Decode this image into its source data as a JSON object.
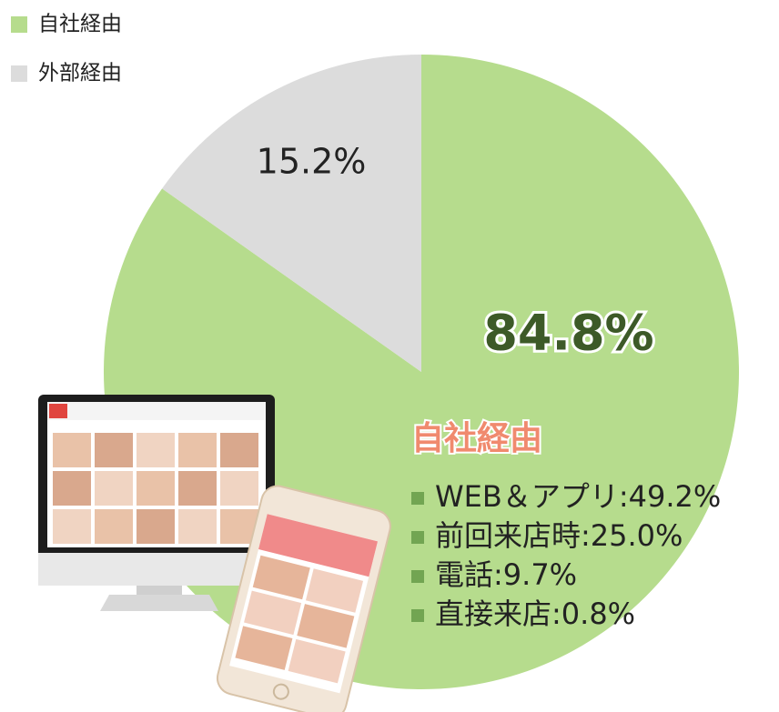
{
  "chart_data": {
    "type": "pie",
    "categories": [
      "自社経由",
      "外部経由"
    ],
    "values": [
      84.8,
      15.2
    ],
    "value_labels": [
      "84.8%",
      "15.2%"
    ],
    "colors": [
      "#b6dc8d",
      "#dcdcdc"
    ],
    "legend": "top-left",
    "annotation": "自社経由",
    "breakdown": [
      "WEB＆アプリ:49.2%",
      "前回来店時:25.0%",
      "電話:9.7%",
      "直接来店:0.8%"
    ]
  }
}
